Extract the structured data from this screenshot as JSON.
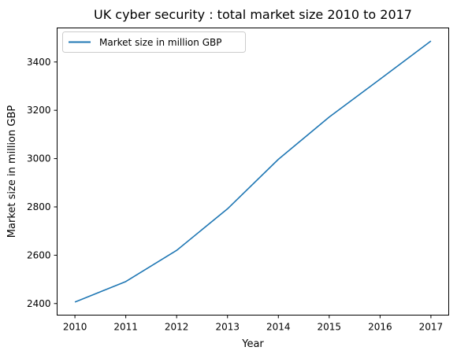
{
  "chart_data": {
    "type": "line",
    "title": "UK cyber security : total market size 2010 to 2017",
    "xlabel": "Year",
    "ylabel": "Market size in million GBP",
    "x": [
      2010,
      2011,
      2012,
      2013,
      2014,
      2015,
      2016,
      2017
    ],
    "series": [
      {
        "name": "Market size in million GBP",
        "values": [
          2406,
          2491,
          2620,
          2792,
          2997,
          3172,
          3329,
          3487
        ],
        "color": "#1f77b4"
      }
    ],
    "xlim": [
      2009.65,
      2017.35
    ],
    "ylim": [
      2352,
      3541
    ],
    "xticks": [
      2010,
      2011,
      2012,
      2013,
      2014,
      2015,
      2016,
      2017
    ],
    "yticks": [
      2400,
      2600,
      2800,
      3000,
      3200,
      3400
    ],
    "grid": false,
    "legend": "top-left"
  }
}
